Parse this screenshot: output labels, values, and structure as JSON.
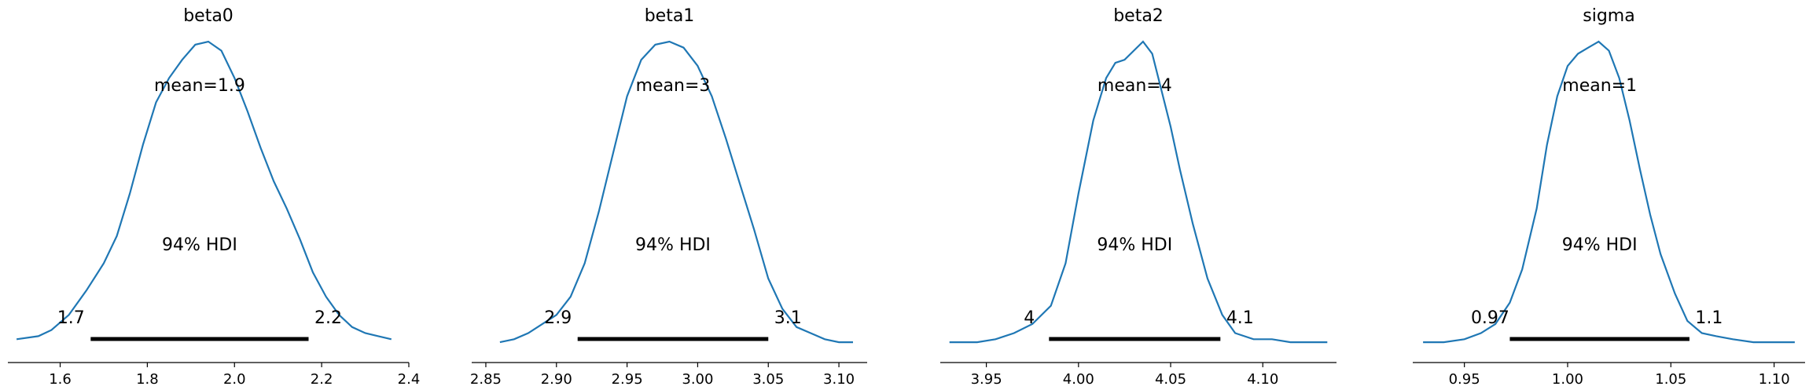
{
  "chart_data": [
    {
      "type": "density",
      "title": "beta0",
      "mean_label": "mean=1.9",
      "hdi_label": "94% HDI",
      "hdi": [
        1.67,
        2.17
      ],
      "hdi_low_label": "1.7",
      "hdi_high_label": "2.2",
      "xlim": [
        1.48,
        2.4
      ],
      "xticks": [
        1.6,
        1.8,
        2.0,
        2.2,
        2.4
      ],
      "xtick_labels": [
        "1.6",
        "1.8",
        "2.0",
        "2.2",
        "2.4"
      ],
      "curve": {
        "x": [
          1.5,
          1.55,
          1.58,
          1.62,
          1.66,
          1.7,
          1.73,
          1.76,
          1.79,
          1.82,
          1.85,
          1.88,
          1.91,
          1.94,
          1.97,
          2.0,
          2.03,
          2.06,
          2.09,
          2.12,
          2.15,
          2.18,
          2.21,
          2.24,
          2.27,
          2.3,
          2.33,
          2.36
        ],
        "y": [
          0.02,
          0.03,
          0.05,
          0.1,
          0.18,
          0.27,
          0.36,
          0.5,
          0.66,
          0.8,
          0.88,
          0.94,
          0.99,
          1.0,
          0.97,
          0.88,
          0.77,
          0.65,
          0.54,
          0.45,
          0.35,
          0.24,
          0.16,
          0.1,
          0.06,
          0.04,
          0.03,
          0.02
        ]
      },
      "grid": false
    },
    {
      "type": "density",
      "title": "beta1",
      "mean_label": "mean=3",
      "hdi_label": "94% HDI",
      "hdi": [
        2.915,
        3.05
      ],
      "hdi_low_label": "2.9",
      "hdi_high_label": "3.1",
      "xlim": [
        2.84,
        3.12
      ],
      "xticks": [
        2.85,
        2.9,
        2.95,
        3.0,
        3.05,
        3.1
      ],
      "xtick_labels": [
        "2.85",
        "2.90",
        "2.95",
        "3.00",
        "3.05",
        "3.10"
      ],
      "curve": {
        "x": [
          2.86,
          2.87,
          2.88,
          2.89,
          2.9,
          2.91,
          2.92,
          2.93,
          2.94,
          2.95,
          2.96,
          2.97,
          2.98,
          2.99,
          3.0,
          3.01,
          3.02,
          3.03,
          3.04,
          3.05,
          3.06,
          3.07,
          3.08,
          3.09,
          3.1,
          3.11
        ],
        "y": [
          0.01,
          0.02,
          0.04,
          0.07,
          0.1,
          0.16,
          0.27,
          0.44,
          0.63,
          0.82,
          0.94,
          0.99,
          1.0,
          0.98,
          0.92,
          0.82,
          0.68,
          0.53,
          0.38,
          0.22,
          0.12,
          0.06,
          0.04,
          0.02,
          0.01,
          0.01
        ]
      },
      "grid": false
    },
    {
      "type": "density",
      "title": "beta2",
      "mean_label": "mean=4",
      "hdi_label": "94% HDI",
      "hdi": [
        3.984,
        4.077
      ],
      "hdi_low_label": "4",
      "hdi_high_label": "4.1",
      "xlim": [
        3.925,
        4.14
      ],
      "xticks": [
        3.95,
        4.0,
        4.05,
        4.1
      ],
      "xtick_labels": [
        "3.95",
        "4.00",
        "4.05",
        "4.10"
      ],
      "curve": {
        "x": [
          3.93,
          3.945,
          3.955,
          3.965,
          3.975,
          3.985,
          3.993,
          4.0,
          4.008,
          4.015,
          4.02,
          4.025,
          4.03,
          4.035,
          4.04,
          4.045,
          4.05,
          4.055,
          4.062,
          4.07,
          4.078,
          4.085,
          4.095,
          4.105,
          4.115,
          4.125,
          4.135
        ],
        "y": [
          0.01,
          0.01,
          0.02,
          0.04,
          0.07,
          0.13,
          0.27,
          0.5,
          0.74,
          0.88,
          0.93,
          0.94,
          0.97,
          1.0,
          0.96,
          0.84,
          0.72,
          0.58,
          0.4,
          0.22,
          0.1,
          0.04,
          0.02,
          0.02,
          0.01,
          0.01,
          0.01
        ]
      },
      "grid": false
    },
    {
      "type": "density",
      "title": "sigma",
      "mean_label": "mean=1",
      "hdi_label": "94% HDI",
      "hdi": [
        0.972,
        1.059
      ],
      "hdi_low_label": "0.97",
      "hdi_high_label": "1.1",
      "xlim": [
        0.925,
        1.115
      ],
      "xticks": [
        0.95,
        1.0,
        1.05,
        1.1
      ],
      "xtick_labels": [
        "0.95",
        "1.00",
        "1.05",
        "1.10"
      ],
      "curve": {
        "x": [
          0.93,
          0.94,
          0.95,
          0.958,
          0.965,
          0.972,
          0.978,
          0.985,
          0.99,
          0.995,
          1.0,
          1.005,
          1.01,
          1.015,
          1.02,
          1.025,
          1.03,
          1.035,
          1.04,
          1.045,
          1.052,
          1.058,
          1.065,
          1.072,
          1.08,
          1.09,
          1.1,
          1.11
        ],
        "y": [
          0.01,
          0.01,
          0.02,
          0.04,
          0.07,
          0.14,
          0.25,
          0.45,
          0.66,
          0.82,
          0.92,
          0.96,
          0.98,
          1.0,
          0.97,
          0.88,
          0.74,
          0.58,
          0.43,
          0.3,
          0.17,
          0.08,
          0.04,
          0.03,
          0.02,
          0.01,
          0.01,
          0.01
        ]
      },
      "grid": false
    }
  ]
}
